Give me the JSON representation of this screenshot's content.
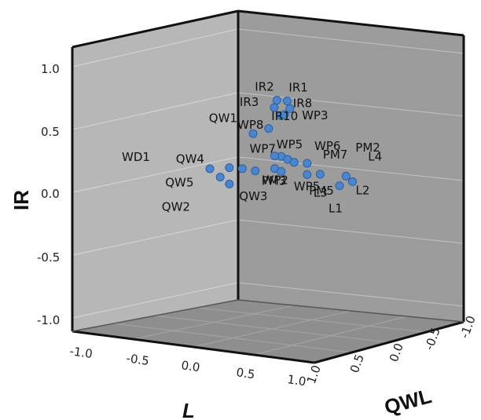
{
  "chart_data": {
    "type": "scatter",
    "title": "",
    "projection": "3d",
    "axes": {
      "y": {
        "label": "IR",
        "range": [
          -1.0,
          1.0
        ],
        "ticks": [
          "1.0",
          "0.5",
          "0.0",
          "-0.5",
          "-1.0"
        ]
      },
      "x": {
        "label": "L",
        "range": [
          -1.0,
          1.0
        ],
        "ticks": [
          "-1.0",
          "-0.5",
          "0.0",
          "0.5",
          "1.0"
        ]
      },
      "z": {
        "label": "QWL",
        "range": [
          -1.0,
          1.0
        ],
        "ticks": [
          "1.0",
          "0.5",
          "0.0",
          "-0.5",
          "-1.0"
        ]
      }
    },
    "grid": true,
    "point_color": "#4a86d0",
    "series": [
      {
        "points": [
          {
            "label": "IR2",
            "x": 0.3,
            "y": 0.74,
            "z": -0.05
          },
          {
            "label": "IR1",
            "x": 0.38,
            "y": 0.74,
            "z": -0.05
          },
          {
            "label": "IR3",
            "x": 0.28,
            "y": 0.68,
            "z": -0.05
          },
          {
            "label": "IR8",
            "x": 0.4,
            "y": 0.68,
            "z": -0.05
          },
          {
            "label": "IR10",
            "x": 0.33,
            "y": 0.62,
            "z": -0.05
          },
          {
            "label": "WP3",
            "x": 0.36,
            "y": 0.63,
            "z": -0.05
          },
          {
            "label": "WP8",
            "x": 0.15,
            "y": 0.47,
            "z": 0.05
          },
          {
            "label": "QW1",
            "x": 0.27,
            "y": 0.52,
            "z": 0.05
          },
          {
            "label": "WP5",
            "x": 0.35,
            "y": 0.3,
            "z": 0.0
          },
          {
            "label": "WP6",
            "x": 0.4,
            "y": 0.28,
            "z": 0.0
          },
          {
            "label": "PM2",
            "x": 0.45,
            "y": 0.26,
            "z": 0.0
          },
          {
            "label": "WP7",
            "x": 0.3,
            "y": 0.3,
            "z": 0.0
          },
          {
            "label": "PM7",
            "x": 0.55,
            "y": 0.26,
            "z": 0.0
          },
          {
            "label": "L4",
            "x": 0.85,
            "y": 0.18,
            "z": 0.0
          },
          {
            "label": "WD1",
            "x": -0.2,
            "y": 0.16,
            "z": 0.0
          },
          {
            "label": "QW4",
            "x": -0.05,
            "y": 0.18,
            "z": 0.0
          },
          {
            "label": "WP2",
            "x": 0.3,
            "y": 0.2,
            "z": 0.0
          },
          {
            "label": "PM5",
            "x": 0.65,
            "y": 0.18,
            "z": 0.0
          },
          {
            "label": "L2",
            "x": 0.9,
            "y": 0.14,
            "z": 0.0
          },
          {
            "label": "QW5",
            "x": -0.12,
            "y": 0.1,
            "z": 0.0
          },
          {
            "label": "QW2",
            "x": -0.05,
            "y": 0.05,
            "z": 0.0
          },
          {
            "label": "PM3",
            "x": 0.15,
            "y": 0.17,
            "z": 0.0
          },
          {
            "label": "WP5",
            "x": 0.35,
            "y": 0.18,
            "z": 0.0
          },
          {
            "label": "L3",
            "x": 0.55,
            "y": 0.17,
            "z": 0.0
          },
          {
            "label": "L1",
            "x": 0.8,
            "y": 0.1,
            "z": 0.0
          },
          {
            "label": "QW3",
            "x": 0.05,
            "y": 0.18,
            "z": 0.0
          }
        ]
      }
    ]
  }
}
